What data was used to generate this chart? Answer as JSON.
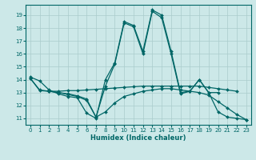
{
  "title": "",
  "xlabel": "Humidex (Indice chaleur)",
  "bg_color": "#cce8e8",
  "grid_color": "#aacccc",
  "line_color": "#006666",
  "xlim": [
    -0.5,
    23.5
  ],
  "ylim": [
    10.5,
    19.8
  ],
  "xticks": [
    0,
    1,
    2,
    3,
    4,
    5,
    6,
    7,
    8,
    9,
    10,
    11,
    12,
    13,
    14,
    15,
    16,
    17,
    18,
    19,
    20,
    21,
    22,
    23
  ],
  "yticks": [
    11,
    12,
    13,
    14,
    15,
    16,
    17,
    18,
    19
  ],
  "lines": [
    {
      "x": [
        0,
        1,
        2,
        3,
        4,
        5,
        6,
        7,
        8,
        9,
        10,
        11,
        12,
        13,
        14,
        15,
        16,
        17,
        18,
        19,
        20,
        21,
        22,
        23
      ],
      "y": [
        14.2,
        13.9,
        13.2,
        12.9,
        12.7,
        12.6,
        11.4,
        11.0,
        14.0,
        15.3,
        18.5,
        18.2,
        16.2,
        19.4,
        19.0,
        16.2,
        13.0,
        13.1,
        14.0,
        13.0,
        11.5,
        11.1,
        11.0,
        10.9
      ]
    },
    {
      "x": [
        0,
        1,
        2,
        3,
        4,
        5,
        6,
        7,
        8,
        9,
        10,
        11,
        12,
        13,
        14,
        15,
        16,
        17,
        18,
        19,
        20,
        21,
        22
      ],
      "y": [
        14.1,
        13.2,
        13.1,
        13.1,
        13.15,
        13.15,
        13.2,
        13.25,
        13.3,
        13.35,
        13.4,
        13.45,
        13.5,
        13.5,
        13.5,
        13.5,
        13.5,
        13.5,
        13.5,
        13.4,
        13.3,
        13.2,
        13.1
      ]
    },
    {
      "x": [
        0,
        1,
        2,
        3,
        4,
        5,
        6,
        7,
        8,
        9,
        10,
        11,
        12,
        13,
        14,
        15,
        16,
        17,
        18,
        19,
        20,
        21,
        22,
        23
      ],
      "y": [
        14.1,
        13.15,
        13.1,
        13.0,
        12.85,
        12.7,
        12.4,
        11.1,
        11.5,
        12.2,
        12.7,
        12.9,
        13.1,
        13.2,
        13.3,
        13.3,
        13.2,
        13.1,
        13.0,
        12.8,
        12.3,
        11.8,
        11.3,
        10.9
      ]
    },
    {
      "x": [
        2,
        3,
        4,
        5,
        6,
        7,
        8,
        9,
        10,
        11,
        12,
        13,
        14,
        15,
        16,
        17,
        18,
        19,
        20
      ],
      "y": [
        13.1,
        13.0,
        12.9,
        12.75,
        12.5,
        11.1,
        13.5,
        15.2,
        18.4,
        18.1,
        16.0,
        19.3,
        18.8,
        16.0,
        12.9,
        13.1,
        14.0,
        13.0,
        13.0
      ]
    }
  ]
}
